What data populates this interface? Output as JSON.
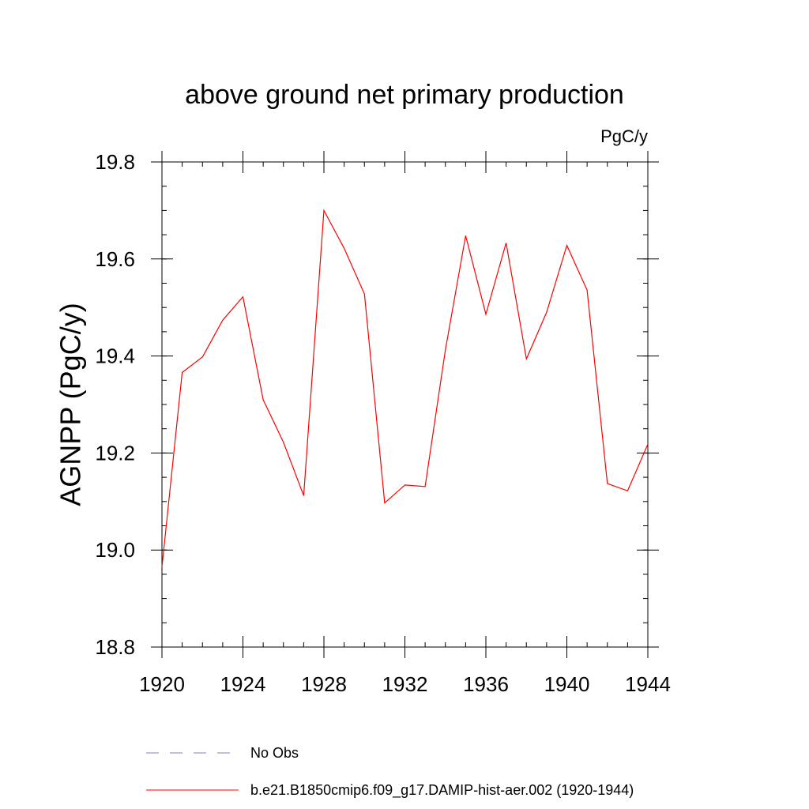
{
  "chart_data": {
    "type": "line",
    "title": "above ground net primary production",
    "units_label": "PgC/y",
    "xlabel": "",
    "ylabel": "AGNPP  (PgC/y)",
    "xlim": [
      1920,
      1944
    ],
    "ylim": [
      18.8,
      19.8
    ],
    "x_major_ticks": [
      1920,
      1924,
      1928,
      1932,
      1936,
      1940,
      1944
    ],
    "x_tick_labels": [
      "1920",
      "1924",
      "1928",
      "1932",
      "1936",
      "1940",
      "1944"
    ],
    "y_major_ticks": [
      18.8,
      19.0,
      19.2,
      19.4,
      19.6,
      19.8
    ],
    "y_tick_labels": [
      "18.8",
      "19.0",
      "19.2",
      "19.4",
      "19.6",
      "19.8"
    ],
    "x_minor_step": 1,
    "y_minor_step": 0.05,
    "grid": false,
    "legend_position": "bottom",
    "series": [
      {
        "name": "b.e21.B1850cmip6.f09_g17.DAMIP-hist-aer.002 (1920-1944)",
        "color": "#ff0000",
        "style": "solid",
        "x": [
          1920,
          1921,
          1922,
          1923,
          1924,
          1925,
          1926,
          1927,
          1928,
          1929,
          1930,
          1931,
          1932,
          1933,
          1934,
          1935,
          1936,
          1937,
          1938,
          1939,
          1940,
          1941,
          1942,
          1943,
          1944
        ],
        "values": [
          18.965,
          19.366,
          19.398,
          19.474,
          19.522,
          19.31,
          19.222,
          19.112,
          19.7,
          19.622,
          19.528,
          19.097,
          19.134,
          19.131,
          19.413,
          19.648,
          19.486,
          19.633,
          19.394,
          19.49,
          19.628,
          19.536,
          19.137,
          19.122,
          19.218
        ]
      }
    ],
    "legend": [
      {
        "label": "No Obs",
        "color": "#8080c0",
        "style": "dashed"
      },
      {
        "label": "b.e21.B1850cmip6.f09_g17.DAMIP-hist-aer.002 (1920-1944)",
        "color": "#ff0000",
        "style": "solid"
      }
    ]
  }
}
